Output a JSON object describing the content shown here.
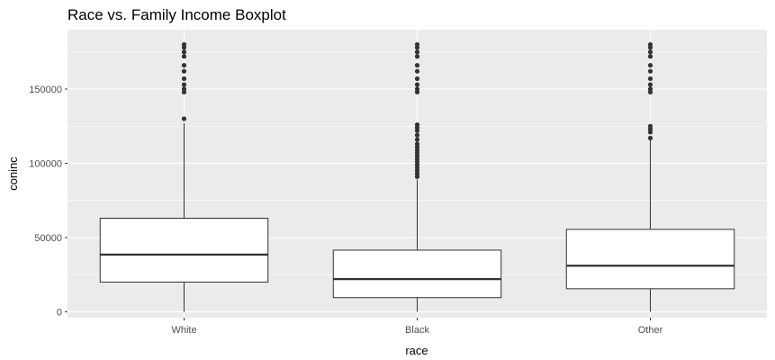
{
  "chart_data": {
    "type": "boxplot",
    "title": "Race vs. Family Income Boxplot",
    "xlabel": "race",
    "ylabel": "coninc",
    "categories": [
      "White",
      "Black",
      "Other"
    ],
    "y_ticks": [
      0,
      50000,
      100000,
      150000
    ],
    "y_tick_labels": [
      "0",
      "50000",
      "100000",
      "150000"
    ],
    "ylim": [
      -4000,
      190000
    ],
    "grid": true,
    "colors": {
      "panel_background": "#ebebeb",
      "grid_line": "#ffffff",
      "box_fill": "#ffffff",
      "box_stroke": "#333333",
      "outlier": "#333333"
    },
    "boxes": [
      {
        "category": "White",
        "whisker_low": 0,
        "q1": 20000,
        "median": 38500,
        "q3": 63000,
        "whisker_high": 127000,
        "outliers": [
          130000,
          148000,
          150000,
          153000,
          157000,
          162000,
          166000,
          172000,
          175000,
          178000,
          180000
        ]
      },
      {
        "category": "Black",
        "whisker_low": 0,
        "q1": 9500,
        "median": 22000,
        "q3": 41500,
        "whisker_high": 89000,
        "outliers": [
          91000,
          93000,
          95000,
          97000,
          99000,
          101000,
          103000,
          105000,
          107000,
          109000,
          111000,
          113000,
          116000,
          119000,
          122000,
          124000,
          126000,
          148000,
          150000,
          153000,
          157000,
          162000,
          166000,
          172000,
          175000,
          178000,
          180000
        ]
      },
      {
        "category": "Other",
        "whisker_low": 0,
        "q1": 15500,
        "median": 31000,
        "q3": 55500,
        "whisker_high": 116000,
        "outliers": [
          117000,
          121000,
          123000,
          125000,
          148000,
          150000,
          153000,
          157000,
          162000,
          166000,
          172000,
          175000,
          178000,
          180000
        ]
      }
    ]
  }
}
